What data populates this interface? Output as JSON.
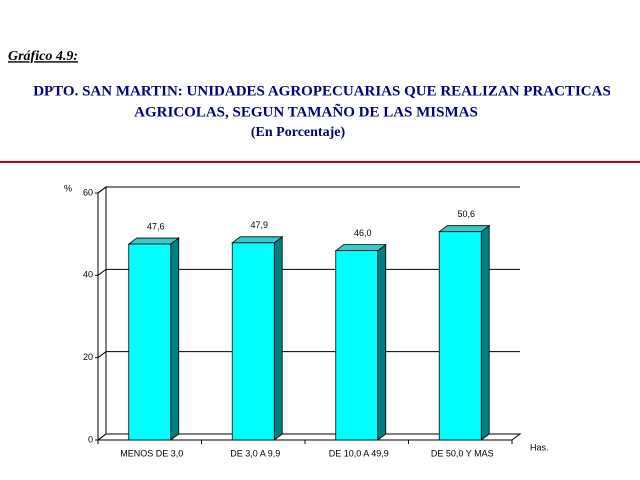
{
  "chart_data": {
    "type": "bar3d",
    "caption": "Gráfico 4.9:",
    "title": [
      "DPTO. SAN MARTIN: UNIDADES AGROPECUARIAS QUE REALIZAN PRACTICAS",
      "AGRICOLAS, SEGUN TAMAÑO DE LAS MISMAS"
    ],
    "subtitle": "(En Porcentaje)",
    "y_label": "%",
    "x_label": "Has.",
    "categories": [
      "MENOS DE 3,0",
      "DE 3,0 A 9,9",
      "DE 10,0 A 49,9",
      "DE 50,0 Y MAS"
    ],
    "values": [
      47.6,
      47.9,
      46.0,
      50.6
    ],
    "value_labels": [
      "47,6",
      "47,9",
      "46,0",
      "50,6"
    ],
    "color": "#00ffff",
    "ylim": [
      0,
      60
    ],
    "yticks": [
      0,
      20,
      40,
      60
    ],
    "grid": true
  }
}
